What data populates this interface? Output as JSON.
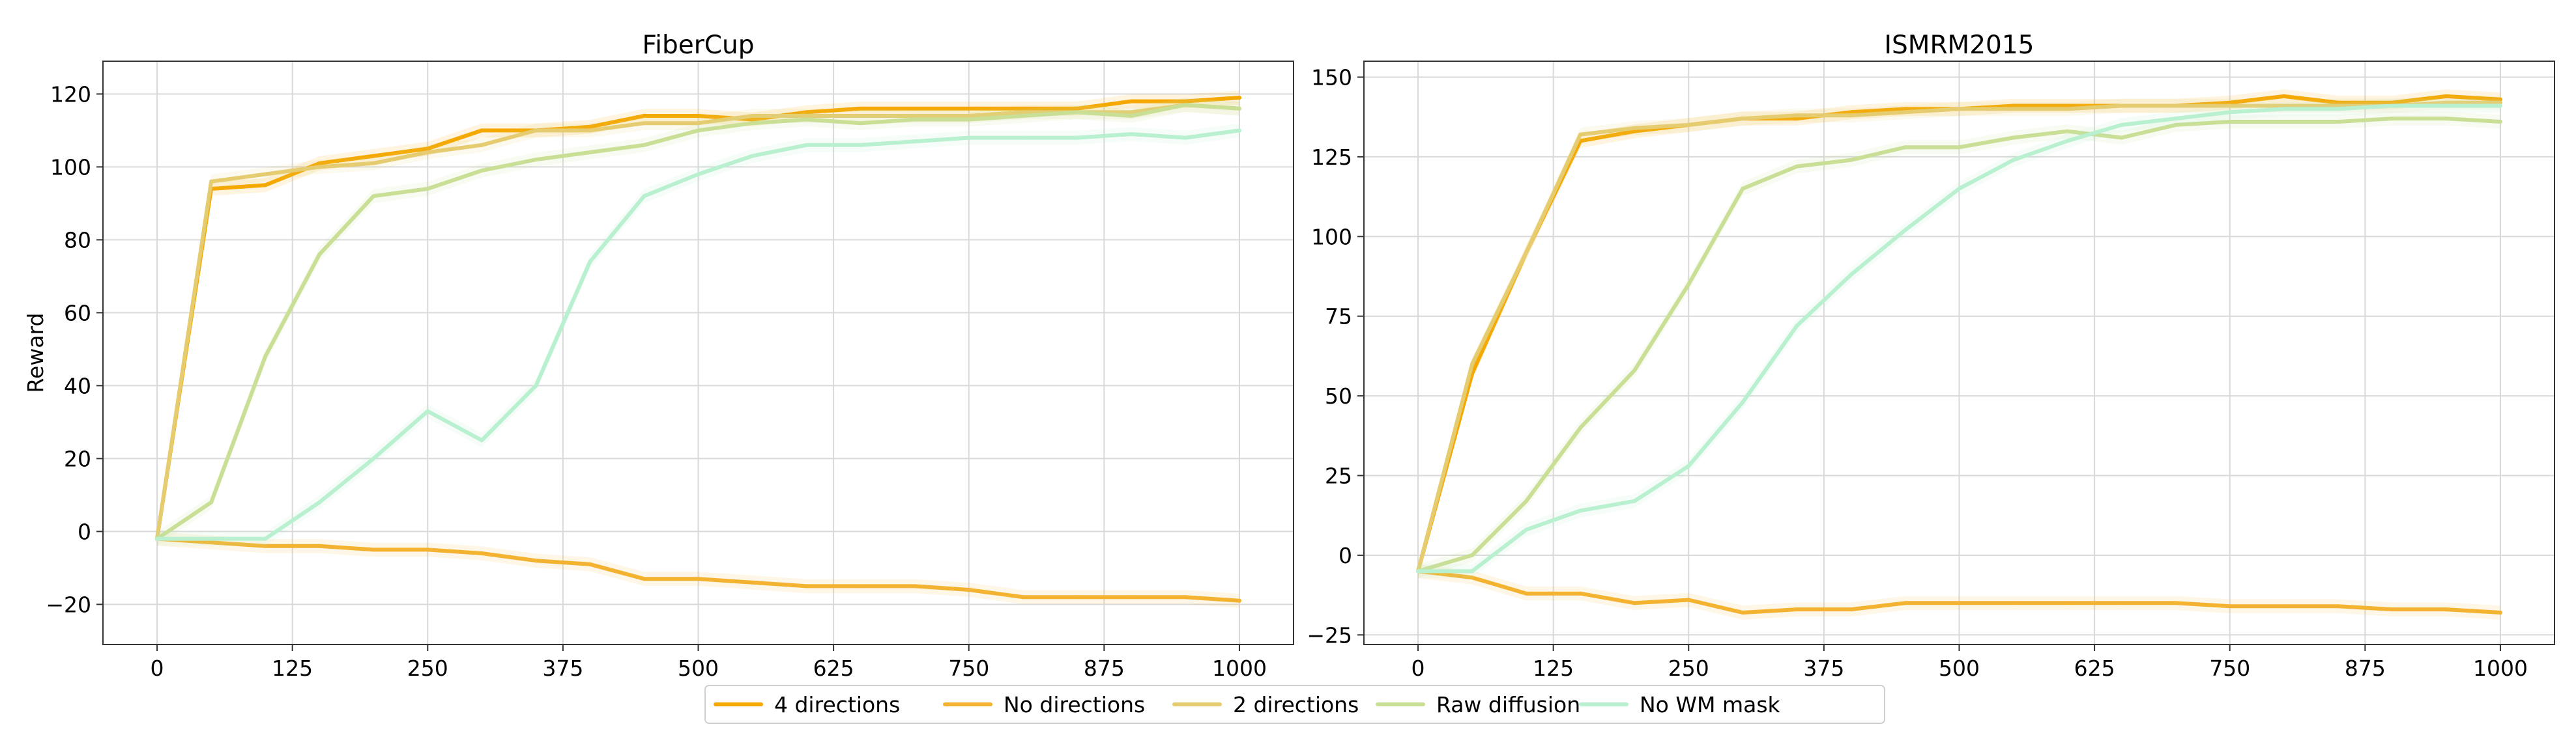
{
  "chart_data": [
    {
      "type": "line",
      "title": "FiberCup",
      "xlabel": "",
      "ylabel": "Reward",
      "xlim": [
        -50,
        1050
      ],
      "ylim": [
        -31,
        129
      ],
      "xticks": [
        "0",
        "125",
        "250",
        "375",
        "500",
        "625",
        "750",
        "875",
        "1000"
      ],
      "yticks": [
        "−20",
        "0",
        "20",
        "40",
        "60",
        "80",
        "100",
        "120"
      ],
      "grid": true,
      "x": [
        0,
        50,
        100,
        150,
        200,
        250,
        300,
        350,
        400,
        450,
        500,
        550,
        600,
        650,
        700,
        750,
        800,
        850,
        900,
        950,
        1000
      ],
      "series": [
        {
          "name": "4 directions",
          "color": "#f5a800",
          "values": [
            -2,
            94,
            95,
            101,
            103,
            105,
            110,
            110,
            111,
            114,
            114,
            113,
            115,
            116,
            116,
            116,
            116,
            116,
            118,
            118,
            119
          ]
        },
        {
          "name": "No directions",
          "color": "#f3b330",
          "values": [
            -2,
            -3,
            -4,
            -4,
            -5,
            -5,
            -6,
            -8,
            -9,
            -13,
            -13,
            -14,
            -15,
            -15,
            -15,
            -16,
            -18,
            -18,
            -18,
            -18,
            -19
          ]
        },
        {
          "name": "2 directions",
          "color": "#e6cc70",
          "values": [
            -2,
            96,
            98,
            100,
            101,
            104,
            106,
            110,
            110,
            112,
            112,
            114,
            114,
            114,
            114,
            114,
            115,
            115,
            115,
            117,
            116
          ]
        },
        {
          "name": "Raw diffusion",
          "color": "#c9df96",
          "values": [
            -2,
            8,
            48,
            76,
            92,
            94,
            99,
            102,
            104,
            106,
            110,
            112,
            113,
            112,
            113,
            113,
            114,
            115,
            114,
            117,
            116
          ]
        },
        {
          "name": "No WM mask",
          "color": "#b8f0d0",
          "values": [
            -2,
            -2,
            -2,
            8,
            20,
            33,
            25,
            40,
            74,
            92,
            98,
            103,
            106,
            106,
            107,
            108,
            108,
            108,
            109,
            108,
            110
          ]
        }
      ]
    },
    {
      "type": "line",
      "title": "ISMRM2015",
      "xlabel": "",
      "ylabel": "",
      "xlim": [
        -50,
        1050
      ],
      "ylim": [
        -28,
        155
      ],
      "xticks": [
        "0",
        "125",
        "250",
        "375",
        "500",
        "625",
        "750",
        "875",
        "1000"
      ],
      "yticks": [
        "−25",
        "0",
        "25",
        "50",
        "75",
        "100",
        "125",
        "150"
      ],
      "grid": true,
      "x": [
        0,
        50,
        100,
        150,
        200,
        250,
        300,
        350,
        400,
        450,
        500,
        550,
        600,
        650,
        700,
        750,
        800,
        850,
        900,
        950,
        1000
      ],
      "series": [
        {
          "name": "4 directions",
          "color": "#f5a800",
          "values": [
            -5,
            57,
            95,
            130,
            133,
            135,
            137,
            137,
            139,
            140,
            140,
            141,
            141,
            141,
            141,
            142,
            144,
            142,
            142,
            144,
            143
          ]
        },
        {
          "name": "No directions",
          "color": "#f3b330",
          "values": [
            -5,
            -7,
            -12,
            -12,
            -15,
            -14,
            -18,
            -17,
            -17,
            -15,
            -15,
            -15,
            -15,
            -15,
            -15,
            -16,
            -16,
            -16,
            -17,
            -17,
            -18
          ]
        },
        {
          "name": "2 directions",
          "color": "#e6cc70",
          "values": [
            -5,
            60,
            95,
            132,
            134,
            135,
            137,
            138,
            138,
            139,
            140,
            140,
            140,
            141,
            141,
            141,
            141,
            141,
            141,
            142,
            142
          ]
        },
        {
          "name": "Raw diffusion",
          "color": "#c9df96",
          "values": [
            -5,
            0,
            17,
            40,
            58,
            85,
            115,
            122,
            124,
            128,
            128,
            131,
            133,
            131,
            135,
            136,
            136,
            136,
            137,
            137,
            136
          ]
        },
        {
          "name": "No WM mask",
          "color": "#b8f0d0",
          "values": [
            -5,
            -5,
            8,
            14,
            17,
            28,
            48,
            72,
            88,
            102,
            115,
            124,
            130,
            135,
            137,
            139,
            140,
            140,
            141,
            141,
            141
          ]
        }
      ]
    }
  ]
}
